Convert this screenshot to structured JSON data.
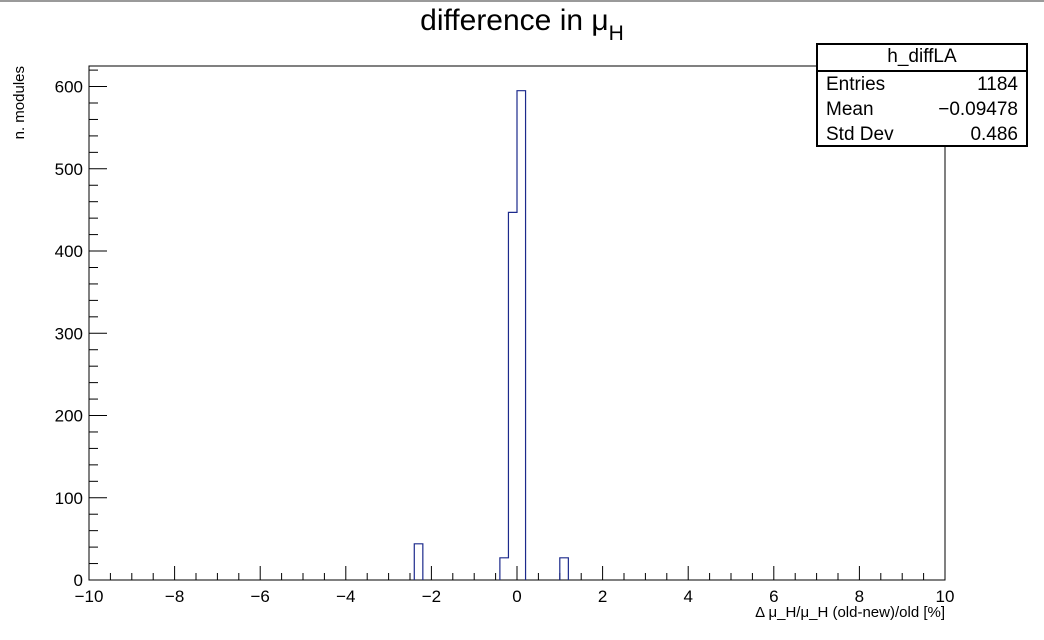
{
  "chart_data": {
    "type": "bar",
    "title": "difference in μ",
    "title_subscript": "H",
    "xlabel": "Δ μ_H/μ_H (old-new)/old [%]",
    "ylabel": "n. modules",
    "xlim": [
      -10,
      10
    ],
    "ylim": [
      0,
      625
    ],
    "x_ticks": [
      "−10",
      "−8",
      "−6",
      "−4",
      "−2",
      "0",
      "2",
      "4",
      "6",
      "8",
      "10"
    ],
    "y_ticks": [
      "0",
      "100",
      "200",
      "300",
      "400",
      "500",
      "600"
    ],
    "bin_width": 0.2,
    "bins": [
      {
        "x0": -2.4,
        "x1": -2.2,
        "count": 44
      },
      {
        "x0": -0.4,
        "x1": -0.2,
        "count": 27
      },
      {
        "x0": -0.2,
        "x1": 0.0,
        "count": 447
      },
      {
        "x0": 0.0,
        "x1": 0.2,
        "count": 595
      },
      {
        "x0": 1.0,
        "x1": 1.2,
        "count": 27
      }
    ],
    "line_color": "#1c2a8c",
    "grid": false
  },
  "stats_box": {
    "name": "h_diffLA",
    "rows": [
      {
        "label": "Entries",
        "value": "1184"
      },
      {
        "label": "Mean",
        "value": "−0.09478"
      },
      {
        "label": "Std Dev",
        "value": "0.486"
      }
    ]
  }
}
